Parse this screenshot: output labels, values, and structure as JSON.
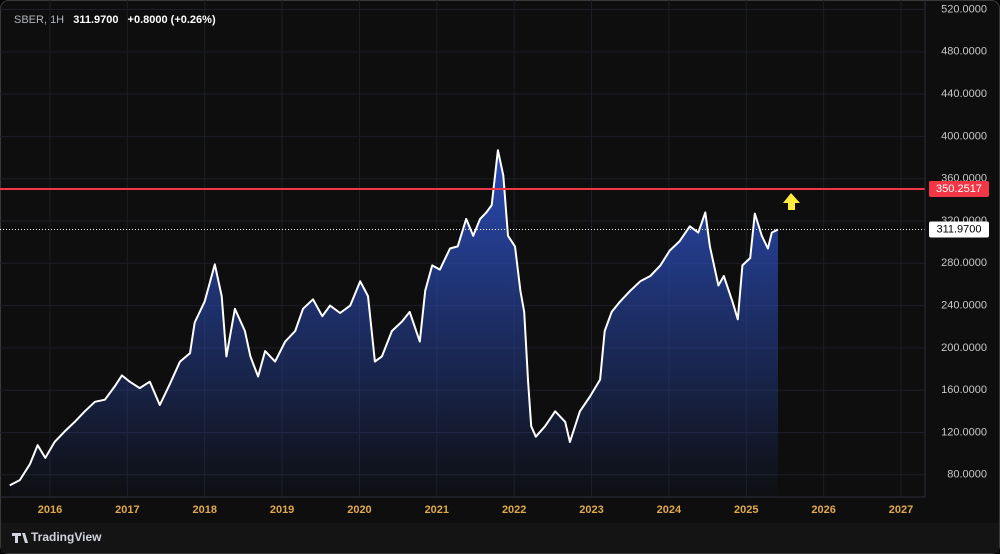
{
  "chart_data": {
    "type": "area",
    "symbol": "SBER, 1H",
    "price": "311.9700",
    "change": "+0.8000 (+0.26%)",
    "branding": "TradingView",
    "color": "#ffffff",
    "fill_color": "#2a4bb5",
    "grid": true,
    "x": [
      2015.48,
      2015.61,
      2015.74,
      2015.84,
      2015.94,
      2016.06,
      2016.19,
      2016.32,
      2016.45,
      2016.58,
      2016.71,
      2016.84,
      2016.93,
      2017.03,
      2017.16,
      2017.29,
      2017.42,
      2017.55,
      2017.68,
      2017.81,
      2017.87,
      2018.0,
      2018.13,
      2018.22,
      2018.28,
      2018.39,
      2018.52,
      2018.59,
      2018.69,
      2018.78,
      2018.91,
      2019.04,
      2019.17,
      2019.27,
      2019.4,
      2019.52,
      2019.62,
      2019.75,
      2019.88,
      2020.01,
      2020.11,
      2020.2,
      2020.29,
      2020.42,
      2020.55,
      2020.65,
      2020.78,
      2020.85,
      2020.94,
      2021.04,
      2021.17,
      2021.27,
      2021.38,
      2021.47,
      2021.56,
      2021.64,
      2021.71,
      2021.79,
      2021.86,
      2021.92,
      2022.01,
      2022.08,
      2022.13,
      2022.18,
      2022.22,
      2022.28,
      2022.4,
      2022.53,
      2022.66,
      2022.72,
      2022.85,
      2022.98,
      2023.11,
      2023.17,
      2023.26,
      2023.37,
      2023.5,
      2023.63,
      2023.76,
      2023.89,
      2024.01,
      2024.14,
      2024.27,
      2024.38,
      2024.47,
      2024.53,
      2024.64,
      2024.71,
      2024.82,
      2024.89,
      2024.95,
      2025.05,
      2025.11,
      2025.2,
      2025.28,
      2025.33,
      2025.41
    ],
    "values": [
      70,
      75,
      90,
      108,
      96,
      111,
      121,
      130,
      140,
      149,
      151,
      164,
      174,
      168,
      162,
      168,
      146,
      166,
      187,
      195,
      224,
      244,
      279,
      249,
      192,
      237,
      216,
      192,
      173,
      197,
      187,
      206,
      216,
      237,
      246,
      230,
      240,
      233,
      240,
      263,
      249,
      187,
      192,
      216,
      225,
      234,
      206,
      254,
      278,
      274,
      294,
      296,
      322,
      306,
      322,
      328,
      335,
      387,
      363,
      306,
      296,
      254,
      234,
      168,
      126,
      116,
      126,
      140,
      130,
      111,
      140,
      154,
      170,
      216,
      234,
      244,
      254,
      263,
      268,
      278,
      292,
      301,
      315,
      309,
      328,
      296,
      259,
      268,
      244,
      227,
      278,
      285,
      327,
      306,
      294,
      309,
      311.97
    ],
    "xlim": [
      2015.354,
      2027.31
    ],
    "xticks": [
      2016,
      2017,
      2018,
      2019,
      2020,
      2021,
      2022,
      2023,
      2024,
      2025,
      2026,
      2027
    ],
    "ylim": [
      59,
      529
    ],
    "yticks": [
      {
        "value": 80,
        "label": "80.0000"
      },
      {
        "value": 120,
        "label": "120.0000"
      },
      {
        "value": 160,
        "label": "160.0000"
      },
      {
        "value": 200,
        "label": "200.0000"
      },
      {
        "value": 240,
        "label": "240.0000"
      },
      {
        "value": 280,
        "label": "280.0000"
      },
      {
        "value": 320,
        "label": "320.0000"
      },
      {
        "value": 360,
        "label": "360.0000"
      },
      {
        "value": 400,
        "label": "400.0000"
      },
      {
        "value": 440,
        "label": "440.0000"
      },
      {
        "value": 480,
        "label": "480.0000"
      },
      {
        "value": 520,
        "label": "520.0000"
      }
    ],
    "hlines": [
      {
        "value": 350.2517,
        "label": "350.2517",
        "color": "#f23645"
      }
    ]
  }
}
